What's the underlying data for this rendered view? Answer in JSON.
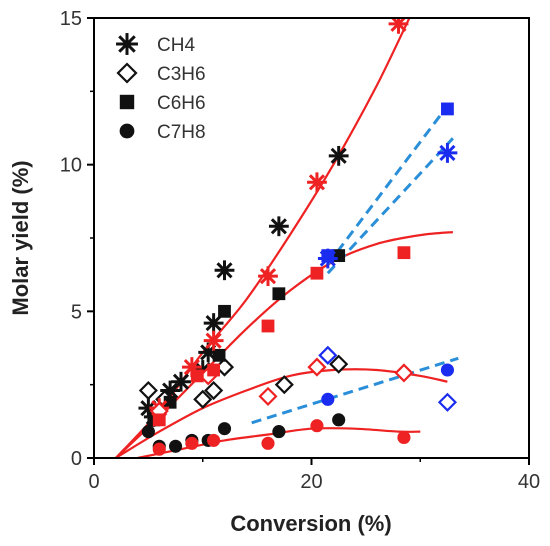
{
  "chart_data": {
    "type": "scatter",
    "xlabel": "Conversion (%)",
    "ylabel": "Molar yield (%)",
    "xlim": [
      0,
      40
    ],
    "ylim": [
      0,
      15
    ],
    "xticks": [
      0,
      20,
      40
    ],
    "yticks": [
      0,
      5,
      10,
      15
    ],
    "x_minor_ticks": [
      10,
      30
    ],
    "y_minor_ticks": [
      2.5,
      7.5,
      12.5
    ],
    "grid": false,
    "legend_position": "top-left",
    "colors": {
      "black": "#111111",
      "red": "#ee2222",
      "blue": "#1a2cf0",
      "trend_red": "#ee2222",
      "trend_blue": "#2a8fd8"
    },
    "series": [
      {
        "name": "CH4",
        "marker": "asterisk",
        "black": [
          [
            5,
            1.7
          ],
          [
            5.5,
            1.4
          ],
          [
            7,
            2.3
          ],
          [
            8,
            2.6
          ],
          [
            10,
            3.0
          ],
          [
            10.5,
            3.6
          ],
          [
            11,
            4.6
          ],
          [
            12,
            6.4
          ],
          [
            17,
            7.9
          ],
          [
            22.5,
            10.3
          ]
        ],
        "red": [
          [
            6,
            1.7
          ],
          [
            9,
            3.1
          ],
          [
            11,
            4.0
          ],
          [
            16,
            6.2
          ],
          [
            20.5,
            9.4
          ],
          [
            28,
            14.8
          ]
        ],
        "blue": [
          [
            21.5,
            6.8
          ],
          [
            32.5,
            10.4
          ]
        ]
      },
      {
        "name": "C3H6",
        "marker": "diamond",
        "black": [
          [
            5,
            2.3
          ],
          [
            6.5,
            2.0
          ],
          [
            10,
            2.0
          ],
          [
            11,
            2.3
          ],
          [
            12,
            3.1
          ],
          [
            17.5,
            2.5
          ],
          [
            22.5,
            3.2
          ]
        ],
        "red": [
          [
            6,
            1.6
          ],
          [
            10.5,
            2.8
          ],
          [
            16,
            2.1
          ],
          [
            20.5,
            3.1
          ],
          [
            28.5,
            2.9
          ]
        ],
        "blue": [
          [
            21.5,
            3.5
          ],
          [
            32.5,
            1.9
          ]
        ]
      },
      {
        "name": "C6H6",
        "marker": "square",
        "black": [
          [
            5.5,
            1.3
          ],
          [
            7,
            1.9
          ],
          [
            10,
            2.9
          ],
          [
            11.5,
            3.5
          ],
          [
            12,
            5.0
          ],
          [
            17,
            5.6
          ],
          [
            22.5,
            6.9
          ]
        ],
        "red": [
          [
            6,
            1.3
          ],
          [
            9.5,
            2.8
          ],
          [
            11,
            3.0
          ],
          [
            16,
            4.5
          ],
          [
            20.5,
            6.3
          ],
          [
            28.5,
            7.0
          ]
        ],
        "blue": [
          [
            21.5,
            6.9
          ],
          [
            32.5,
            11.9
          ]
        ]
      },
      {
        "name": "C7H8",
        "marker": "circle",
        "black": [
          [
            5,
            0.9
          ],
          [
            6,
            0.4
          ],
          [
            7.5,
            0.4
          ],
          [
            9,
            0.6
          ],
          [
            10.5,
            0.6
          ],
          [
            12,
            1.0
          ],
          [
            17,
            0.9
          ],
          [
            22.5,
            1.3
          ]
        ],
        "red": [
          [
            6,
            0.3
          ],
          [
            9,
            0.5
          ],
          [
            11,
            0.6
          ],
          [
            16,
            0.5
          ],
          [
            20.5,
            1.1
          ],
          [
            28.5,
            0.7
          ]
        ],
        "blue": [
          [
            21.5,
            2.0
          ],
          [
            32.5,
            3.0
          ]
        ]
      }
    ],
    "trend_lines": [
      {
        "style": "solid",
        "color": "red",
        "points": [
          [
            2,
            0
          ],
          [
            6,
            1.6
          ],
          [
            10,
            3.6
          ],
          [
            14,
            5.4
          ],
          [
            18,
            7.6
          ],
          [
            22,
            10.0
          ],
          [
            26,
            12.7
          ],
          [
            29,
            15.0
          ]
        ]
      },
      {
        "style": "solid",
        "color": "red",
        "points": [
          [
            2,
            0
          ],
          [
            6,
            1.4
          ],
          [
            10,
            2.9
          ],
          [
            14,
            4.4
          ],
          [
            18,
            5.7
          ],
          [
            22,
            6.7
          ],
          [
            26,
            7.3
          ],
          [
            30,
            7.6
          ],
          [
            33,
            7.7
          ]
        ]
      },
      {
        "style": "solid",
        "color": "red",
        "points": [
          [
            2,
            0
          ],
          [
            6,
            0.9
          ],
          [
            10,
            1.7
          ],
          [
            14,
            2.3
          ],
          [
            18,
            2.8
          ],
          [
            22,
            3.0
          ],
          [
            26,
            3.0
          ],
          [
            30,
            2.8
          ],
          [
            32.5,
            2.6
          ]
        ]
      },
      {
        "style": "solid",
        "color": "red",
        "points": [
          [
            4,
            0
          ],
          [
            8,
            0.3
          ],
          [
            12,
            0.6
          ],
          [
            16,
            0.8
          ],
          [
            20,
            1.0
          ],
          [
            24,
            1.0
          ],
          [
            28,
            0.9
          ],
          [
            30,
            0.9
          ]
        ]
      },
      {
        "style": "dashed",
        "color": "blue",
        "points": [
          [
            21.5,
            6.6
          ],
          [
            32.5,
            12.0
          ]
        ]
      },
      {
        "style": "dashed",
        "color": "blue",
        "points": [
          [
            21.5,
            6.3
          ],
          [
            33,
            10.9
          ]
        ]
      },
      {
        "style": "dashed",
        "color": "blue",
        "points": [
          [
            14.5,
            1.2
          ],
          [
            33.5,
            3.4
          ]
        ]
      }
    ]
  }
}
